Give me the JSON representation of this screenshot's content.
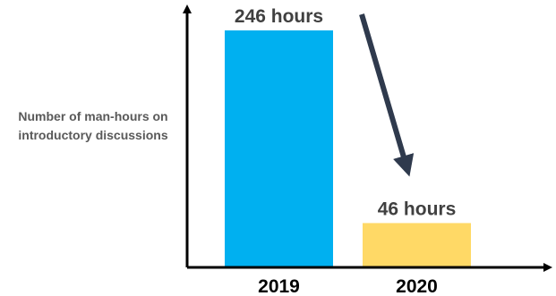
{
  "chart_data": {
    "type": "bar",
    "categories": [
      "2019",
      "2020"
    ],
    "values": [
      246,
      46
    ],
    "data_labels": [
      "246 hours",
      "46 hours"
    ],
    "ylabel_lines": [
      "Number of man-hours on",
      "introductory discussions"
    ],
    "xlabel": "",
    "title": "",
    "ylim": [
      0,
      246
    ],
    "grid": false,
    "legend": "none",
    "colors": {
      "bars": [
        "#00b0f0",
        "#ffd966"
      ],
      "axis": "#000000",
      "label_text": "#404040",
      "ylabel_text": "#595959",
      "trend_arrow": "#2f3a4d"
    },
    "annotations": [
      {
        "type": "trend-arrow",
        "from": "2019",
        "to": "2020",
        "direction": "down"
      }
    ]
  }
}
